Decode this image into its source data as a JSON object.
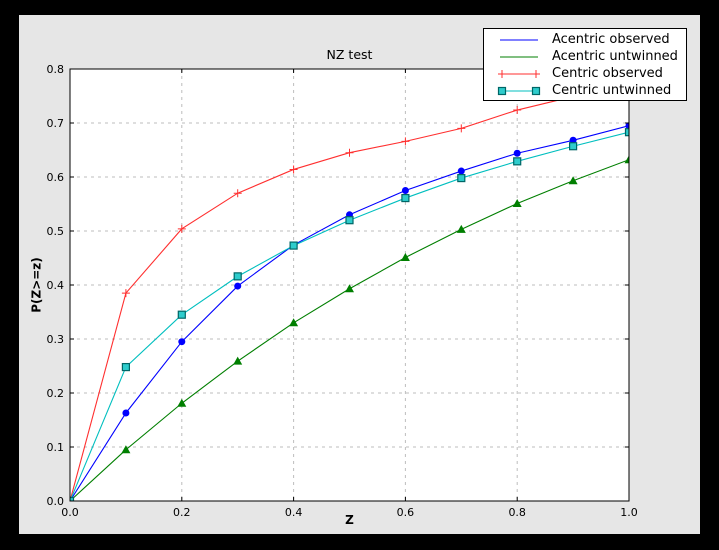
{
  "window": {
    "frame_color": "#000000",
    "figure_bg": "#e6e6e6",
    "plot_bg": "#ffffff",
    "grid_color": "#bdbdbd",
    "axis_color": "#000000"
  },
  "chart_data": {
    "type": "line",
    "title": "NZ test",
    "xlabel": "Z",
    "ylabel": "P(Z>=z)",
    "xlim": [
      0.0,
      1.0
    ],
    "ylim": [
      0.0,
      0.8
    ],
    "grid": true,
    "xticks": [
      0.0,
      0.2,
      0.4,
      0.6,
      0.8,
      1.0
    ],
    "xtick_labels": [
      "0.0",
      "0.2",
      "0.4",
      "0.6",
      "0.8",
      "1.0"
    ],
    "yticks": [
      0.0,
      0.1,
      0.2,
      0.3,
      0.4,
      0.5,
      0.6,
      0.7,
      0.8
    ],
    "ytick_labels": [
      "0.0",
      "0.1",
      "0.2",
      "0.3",
      "0.4",
      "0.5",
      "0.6",
      "0.7",
      "0.8"
    ],
    "x": [
      0.0,
      0.1,
      0.2,
      0.3,
      0.4,
      0.5,
      0.6,
      0.7,
      0.8,
      0.9,
      1.0
    ],
    "series": [
      {
        "name": "Acentric observed",
        "color": "#0000ff",
        "marker": "circle",
        "values": [
          0.0,
          0.163,
          0.295,
          0.398,
          0.474,
          0.53,
          0.575,
          0.611,
          0.644,
          0.668,
          0.695
        ]
      },
      {
        "name": "Acentric untwinned",
        "color": "#007f00",
        "marker": "triangle",
        "values": [
          0.0,
          0.095,
          0.181,
          0.259,
          0.33,
          0.393,
          0.451,
          0.503,
          0.551,
          0.593,
          0.632
        ]
      },
      {
        "name": "Centric observed",
        "color": "#ff2f2f",
        "marker": "plus",
        "values": [
          0.0,
          0.385,
          0.504,
          0.57,
          0.614,
          0.645,
          0.666,
          0.69,
          0.724,
          0.749,
          0.765
        ]
      },
      {
        "name": "Centric untwinned",
        "color": "#00bfbf",
        "marker": "square",
        "marker_fill": "#2ecccc",
        "marker_edge": "#006666",
        "values": [
          0.0,
          0.248,
          0.345,
          0.416,
          0.473,
          0.52,
          0.561,
          0.598,
          0.629,
          0.657,
          0.683
        ]
      }
    ],
    "legend": {
      "position": "upper right",
      "entries": [
        "Acentric observed",
        "Acentric untwinned",
        "Centric observed",
        "Centric untwinned"
      ]
    }
  }
}
